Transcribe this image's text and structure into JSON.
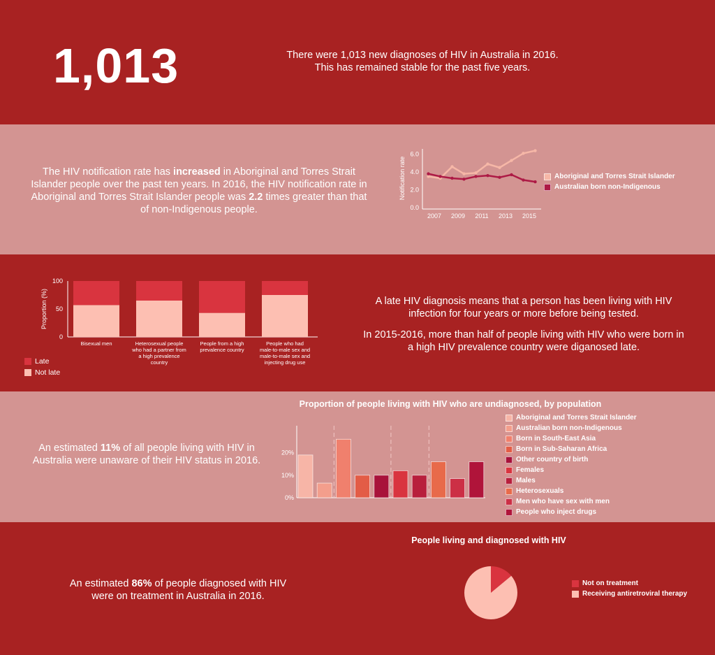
{
  "colors": {
    "dark_band": "#a82222",
    "light_band": "#d39492",
    "late": "#d9343f",
    "not_late": "#fdbfb2",
    "aboriginal": "#f6b7a7",
    "non_indigenous": "#ad1a45",
    "on_treatment": "#fdbfb2",
    "not_on_treatment": "#d9343f"
  },
  "section1": {
    "big_number": "1,013",
    "line1": "There were 1,013 new diagnoses of HIV in Australia in 2016.",
    "line2": "This has remained stable for the past five years."
  },
  "section2": {
    "t1": "The HIV notification rate has ",
    "b1": "increased",
    "t2": " in Aboriginal and Torres Strait Islander people over the past ten years. In 2016, the HIV notification rate in Aboriginal and Torres Strait Islander people was ",
    "b2": "2.2",
    "t3": " times greater than that of non-Indigenous people."
  },
  "section3": {
    "p1": "A late HIV diagnosis means that a person has been living with HIV infection for four years or more before being tested.",
    "p2": "In 2015-2016, more than half of people living with HIV who were born in a high HIV prevalence country were diganosed late."
  },
  "section4": {
    "t1": "An estimated ",
    "b1": "11%",
    "t2": " of all people living with HIV in Australia were unaware of their HIV status in 2016."
  },
  "section5": {
    "t1": "An estimated ",
    "b1": "86%",
    "t2": " of people diagnosed with HIV were on treatment in Australia in 2016."
  },
  "chart_data": [
    {
      "type": "line",
      "ylabel": "Notification rate",
      "x": [
        2006,
        2007,
        2008,
        2009,
        2010,
        2011,
        2012,
        2013,
        2014,
        2015,
        2016
      ],
      "x_ticks": [
        "2007",
        "2009",
        "2011",
        "2013",
        "2015"
      ],
      "y_ticks": [
        "0.0",
        "2.0",
        "4.0",
        "6.0"
      ],
      "ylim": [
        0,
        6.6
      ],
      "series": [
        {
          "name": "Aboriginal and Torres Strait Islander",
          "values": [
            3.5,
            3.3,
            4.6,
            3.8,
            3.9,
            4.9,
            4.5,
            5.3,
            6.1,
            6.4
          ],
          "x": [
            2006.5,
            2007.5,
            2008.5,
            2009.5,
            2010.5,
            2011.5,
            2012.5,
            2013.5,
            2014.5,
            2015.5
          ],
          "color": "#f6b7a7"
        },
        {
          "name": "Australian born non-Indigenous",
          "values": [
            3.8,
            3.5,
            3.3,
            3.2,
            3.5,
            3.6,
            3.4,
            3.7,
            3.1,
            2.9
          ],
          "x": [
            2006.5,
            2007.5,
            2008.5,
            2009.5,
            2010.5,
            2011.5,
            2012.5,
            2013.5,
            2014.5,
            2015.5
          ],
          "color": "#ad1a45"
        }
      ]
    },
    {
      "type": "bar",
      "stacked": true,
      "ylabel": "Proportion (%)",
      "y_ticks": [
        "0",
        "50",
        "100"
      ],
      "ylim": [
        0,
        100
      ],
      "categories": [
        "Bisexual men",
        "Heterosexual people who had a partner from a high prevalence country",
        "People from a high prevalence country",
        "People who had male-to-male sex and male-to-male sex and injecting drug use"
      ],
      "category_lines": [
        [
          "Bisexual men"
        ],
        [
          "Heterosexual people",
          "who had a partner from",
          "a high prevalence",
          "country"
        ],
        [
          "People from a high",
          "prevalence country"
        ],
        [
          "People who had",
          "male-to-male sex and",
          "male-to-male sex and",
          "injecting drug use"
        ]
      ],
      "series": [
        {
          "name": "Not late",
          "values": [
            57,
            65,
            43,
            75
          ],
          "color": "#fdbfb2"
        },
        {
          "name": "Late",
          "values": [
            43,
            35,
            57,
            25
          ],
          "color": "#d9343f"
        }
      ],
      "legend": [
        "Late",
        "Not late"
      ]
    },
    {
      "type": "bar",
      "title": "Proportion of people living with HIV who are undiagnosed, by population",
      "y_ticks": [
        "0%",
        "10%",
        "20%"
      ],
      "ylim": [
        0,
        32
      ],
      "categories": [
        "Aboriginal and Torres Strait Islander",
        "Australian born non-Indigenous",
        "Born in South-East Asia",
        "Born in Sub-Saharan Africa",
        "Other country of birth",
        "Females",
        "Males",
        "Heterosexuals",
        "Men who have sex with men",
        "People who inject drugs"
      ],
      "values": [
        19,
        6.5,
        26,
        10,
        10,
        12,
        10,
        16,
        8.5,
        16
      ],
      "colors": [
        "#f7b5a7",
        "#f39e8c",
        "#f0806d",
        "#e35c46",
        "#a8123a",
        "#d9343f",
        "#b81f3c",
        "#e86a4a",
        "#cc2f45",
        "#b0143a"
      ]
    },
    {
      "type": "pie",
      "title": "People living and diagnosed with HIV",
      "labels": [
        "Not on treatment",
        "Receiving antiretroviral therapy"
      ],
      "values": [
        14,
        86
      ],
      "colors": [
        "#d9343f",
        "#fdbfb2"
      ]
    }
  ]
}
